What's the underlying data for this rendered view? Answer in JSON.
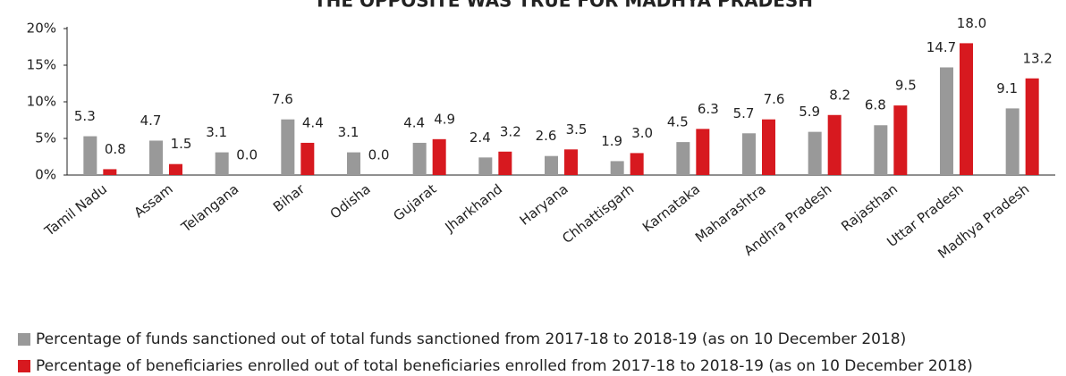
{
  "chart_data": {
    "type": "bar",
    "title": "THE OPPOSITE WAS TRUE FOR MADHYA PRADESH",
    "categories": [
      "Tamil Nadu",
      "Assam",
      "Telangana",
      "Bihar",
      "Odisha",
      "Gujarat",
      "Jharkhand",
      "Haryana",
      "Chhattisgarh",
      "Karnataka",
      "Maharashtra",
      "Andhra Pradesh",
      "Rajasthan",
      "Uttar Pradesh",
      "Madhya Pradesh"
    ],
    "series": [
      {
        "name": "Percentage of funds sanctioned out of total funds sanctioned from 2017-18 to 2018-19 (as on 10 December 2018)",
        "color": "#999999",
        "values": [
          5.3,
          4.7,
          3.1,
          7.6,
          3.1,
          4.4,
          2.4,
          2.6,
          1.9,
          4.5,
          5.7,
          5.9,
          6.8,
          14.7,
          9.1
        ],
        "value_labels": [
          "5.3",
          "4.7",
          "3.1",
          "7.6",
          "3.1",
          "4.4",
          "2.4",
          "2.6",
          "1.9",
          "4.5",
          "5.7",
          "5.9",
          "6.8",
          "14.7",
          "9.1"
        ]
      },
      {
        "name": "Percentage of beneficiaries enrolled out of total beneficiaries enrolled from 2017-18 to 2018-19 (as on 10 December 2018)",
        "color": "#d7191f",
        "values": [
          0.8,
          1.5,
          0,
          4.4,
          0,
          4.9,
          3.2,
          3.5,
          3,
          6.3,
          7.6,
          8.2,
          9.5,
          18,
          13.2
        ],
        "value_labels": [
          "0.8",
          "1.5",
          "0.0",
          "4.4",
          "0.0",
          "4.9",
          "3.2",
          "3.5",
          "3.0",
          "6.3",
          "7.6",
          "8.2",
          "9.5",
          "18.0",
          "13.2"
        ]
      }
    ],
    "ylim": [
      0,
      20
    ],
    "yticks": [
      {
        "value": 0,
        "label": "0%"
      },
      {
        "value": 5,
        "label": "5%"
      },
      {
        "value": 10,
        "label": "10%"
      },
      {
        "value": 15,
        "label": "15%"
      },
      {
        "value": 20,
        "label": "20%"
      }
    ]
  }
}
